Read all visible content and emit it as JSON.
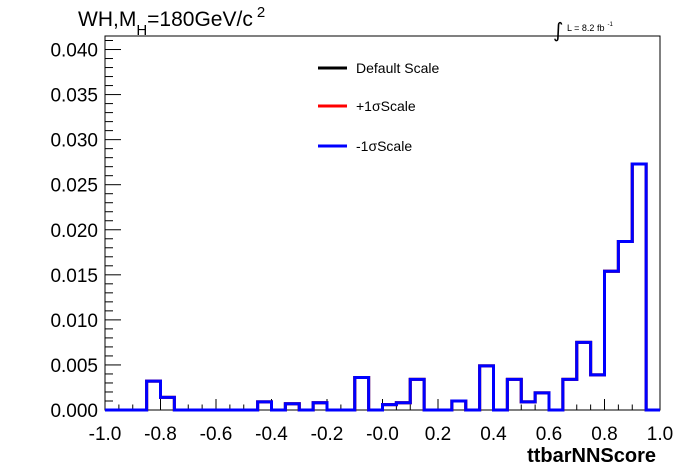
{
  "chart_data": {
    "type": "line",
    "title_main": "WH,M",
    "title_sub": "H",
    "title_rest": "=180GeV/c",
    "title_sup": "2",
    "lumi_symbol": "∫",
    "lumi_text": "L = 8.2 fb",
    "lumi_sup": "-1",
    "xlabel": "ttbarNNScore",
    "ylabel": "",
    "xlim": [
      -1.0,
      1.0
    ],
    "ylim": [
      0.0,
      0.0415
    ],
    "grid": false,
    "legend_placement": "top-center",
    "x_ticks": [
      "-1.0",
      "-0.8",
      "-0.6",
      "-0.4",
      "-0.2",
      "-0.0",
      "0.2",
      "0.4",
      "0.6",
      "0.8",
      "1.0"
    ],
    "y_ticks": [
      "0.000",
      "0.005",
      "0.010",
      "0.015",
      "0.020",
      "0.025",
      "0.030",
      "0.035",
      "0.040"
    ],
    "bin_edges": [
      -1.0,
      -0.95,
      -0.9,
      -0.85,
      -0.8,
      -0.75,
      -0.7,
      -0.65,
      -0.6,
      -0.55,
      -0.5,
      -0.45,
      -0.4,
      -0.35,
      -0.3,
      -0.25,
      -0.2,
      -0.15,
      -0.1,
      -0.05,
      0.0,
      0.05,
      0.1,
      0.15,
      0.2,
      0.25,
      0.3,
      0.35,
      0.4,
      0.45,
      0.5,
      0.55,
      0.6,
      0.65,
      0.7,
      0.75,
      0.8,
      0.85,
      0.9,
      0.95,
      1.0
    ],
    "series": [
      {
        "name": "Default Scale",
        "color": "#000000",
        "values": [
          0,
          0,
          0,
          0.0032,
          0.0014,
          0,
          0,
          0,
          0,
          0,
          0,
          0.0009,
          0,
          0.0007,
          0,
          0.0008,
          0,
          0,
          0.0036,
          0,
          0.0006,
          0.0008,
          0.0034,
          0,
          0,
          0.001,
          0,
          0.0049,
          0,
          0.0034,
          0.0009,
          0.0019,
          0,
          0.0034,
          0.0075,
          0.0039,
          0.0154,
          0.0187,
          0.0273,
          0
        ]
      },
      {
        "name": "+1σScale",
        "color": "#ff0000",
        "values": [
          0,
          0,
          0,
          0.0032,
          0.0014,
          0,
          0,
          0,
          0,
          0,
          0,
          0.0009,
          0,
          0.0007,
          0,
          0.0008,
          0,
          0,
          0.0036,
          0,
          0.0006,
          0.0008,
          0.0034,
          0,
          0,
          0.001,
          0,
          0.0049,
          0,
          0.0034,
          0.0009,
          0.0019,
          0,
          0.0034,
          0.0075,
          0.0039,
          0.0154,
          0.0187,
          0.0273,
          0
        ]
      },
      {
        "name": "-1σScale",
        "color": "#0000ff",
        "values": [
          0,
          0,
          0,
          0.0032,
          0.0014,
          0,
          0,
          0,
          0,
          0,
          0,
          0.0009,
          0,
          0.0007,
          0,
          0.0008,
          0,
          0,
          0.0036,
          0,
          0.0006,
          0.0008,
          0.0034,
          0,
          0,
          0.001,
          0,
          0.0049,
          0,
          0.0034,
          0.0009,
          0.0019,
          0,
          0.0034,
          0.0075,
          0.0039,
          0.0154,
          0.0187,
          0.0273,
          0
        ]
      }
    ]
  }
}
